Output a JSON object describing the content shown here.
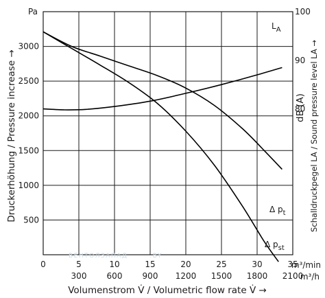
{
  "chart_data": {
    "type": "line",
    "y_left_unit": "Pa",
    "y_right_unit": "100",
    "ylim_left": [
      0,
      3500
    ],
    "ylim_right_db": [
      50,
      100
    ],
    "xlim_m3min": [
      0,
      35
    ],
    "yticks_left": [
      "500",
      "1000",
      "1500",
      "2000",
      "2500",
      "3000"
    ],
    "yticks_right": [
      "90",
      "80"
    ],
    "xticks_m3min": [
      "0",
      "5",
      "10",
      "15",
      "20",
      "25",
      "30",
      "35"
    ],
    "xticks_m3h": [
      "300",
      "600",
      "900",
      "1200",
      "1500",
      "1800",
      "2100"
    ],
    "x_unit_min": "m³/min",
    "x_unit_h": "m³/h",
    "xlabel": "Volumenstrom V̇ / Volumetric flow rate V̇ →",
    "ylabel_left": "Druckerhöhung / Pressure increase →",
    "ylabel_right_db": "dB (A)",
    "ylabel_right": "Schalldruckpegel LA / Sound pressure level LA →",
    "series": [
      {
        "name": "Δ pt",
        "label_main": "Δ p",
        "label_sub": "t",
        "axis": "left",
        "x": [
          0,
          4,
          8,
          12,
          16,
          20,
          24,
          28,
          31,
          33.5
        ],
        "y": [
          3210,
          3000,
          2860,
          2720,
          2580,
          2400,
          2150,
          1810,
          1500,
          1230
        ]
      },
      {
        "name": "Δ pst",
        "label_main": "Δ p",
        "label_sub": "st",
        "axis": "left",
        "x": [
          0,
          4,
          8,
          12,
          16,
          20,
          24,
          28,
          31,
          33
        ],
        "y": [
          3210,
          2970,
          2730,
          2480,
          2180,
          1780,
          1290,
          690,
          190,
          -100
        ]
      },
      {
        "name": "LA",
        "label_main": "L",
        "label_sub": "A",
        "axis": "right",
        "x": [
          0,
          3,
          6,
          10,
          15,
          20,
          25,
          30,
          33.5
        ],
        "y": [
          80.0,
          79.8,
          79.9,
          80.5,
          81.6,
          83.2,
          85.0,
          87.0,
          88.5
        ]
      }
    ],
    "watermark": "ВЕНТОЛЗАПАД",
    "watermark_suffix": ".BY"
  }
}
